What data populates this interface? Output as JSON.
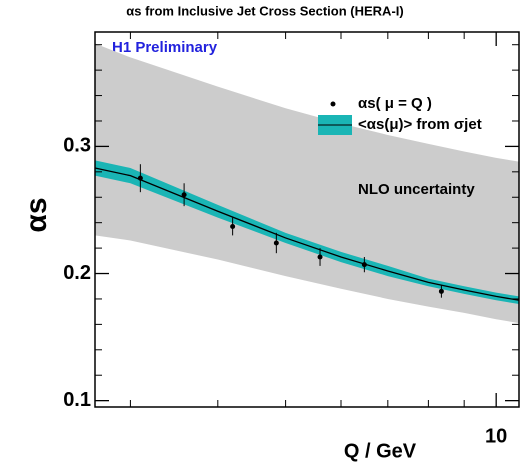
{
  "chart_data": {
    "type": "scatter",
    "title": "αs from Inclusive Jet Cross Section (HERA-I)",
    "annotation": "H1 Preliminary",
    "x_label": "Q / GeV",
    "y_label": "αs",
    "x_log": true,
    "xlim": [
      2.67,
      10.78
    ],
    "ylim": [
      0.095,
      0.39
    ],
    "xticks": [
      10
    ],
    "xticks_minor": [
      3,
      4,
      5,
      6,
      7,
      8,
      9
    ],
    "yticks": [
      0.1,
      0.2,
      0.3
    ],
    "yticks_minor": [
      0.12,
      0.14,
      0.16,
      0.18,
      0.22,
      0.24,
      0.26,
      0.28,
      0.32,
      0.34,
      0.36,
      0.38
    ],
    "series": [
      {
        "name": "αs( μ = Q )",
        "color": "#000000",
        "x": [
          3.1,
          3.58,
          4.2,
          4.85,
          5.6,
          6.48,
          8.35
        ],
        "values": [
          0.275,
          0.262,
          0.237,
          0.224,
          0.213,
          0.207,
          0.186
        ],
        "errors": [
          0.011,
          0.009,
          0.007,
          0.008,
          0.007,
          0.006,
          0.005
        ]
      }
    ],
    "bands": [
      {
        "name": "NLO uncertainty",
        "color": "#cccccc",
        "x": [
          2.67,
          3,
          4,
          5,
          6,
          7,
          8,
          9,
          10,
          10.78
        ],
        "upper": [
          0.381,
          0.37,
          0.347,
          0.33,
          0.318,
          0.309,
          0.302,
          0.296,
          0.291,
          0.288
        ],
        "lower": [
          0.23,
          0.226,
          0.211,
          0.198,
          0.188,
          0.18,
          0.174,
          0.169,
          0.164,
          0.161
        ]
      },
      {
        "name": "<αs(μ)> from σjet",
        "color": "#1ab5b5",
        "x": [
          2.67,
          3,
          4,
          5,
          6,
          7,
          8,
          9,
          10,
          10.78
        ],
        "upper": [
          0.289,
          0.283,
          0.254,
          0.232,
          0.217,
          0.206,
          0.196,
          0.19,
          0.185,
          0.182
        ],
        "lower": [
          0.277,
          0.271,
          0.244,
          0.224,
          0.209,
          0.198,
          0.19,
          0.184,
          0.179,
          0.176
        ]
      }
    ],
    "central": {
      "color": "#000000",
      "x": [
        2.67,
        3,
        4,
        5,
        6,
        7,
        8,
        9,
        10,
        10.78
      ],
      "values": [
        0.283,
        0.277,
        0.249,
        0.228,
        0.213,
        0.202,
        0.193,
        0.187,
        0.182,
        0.179
      ]
    }
  }
}
